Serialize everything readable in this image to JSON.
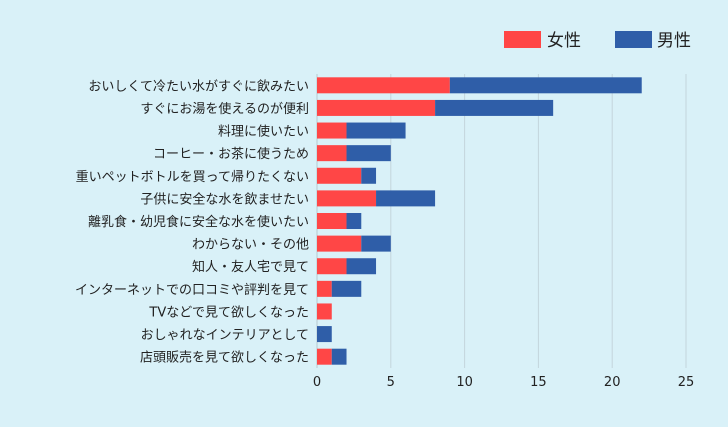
{
  "chart_data": {
    "type": "bar",
    "orientation": "horizontal",
    "stacked": true,
    "categories": [
      "おいしくて冷たい水がすぐに飲みたい",
      "すぐにお湯を使えるのが便利",
      "料理に使いたい",
      "コーヒー・お茶に使うため",
      "重いペットボトルを買って帰りたくない",
      "子供に安全な水を飲ませたい",
      "離乳食・幼児食に安全な水を使いたい",
      "わからない・その他",
      "知人・友人宅で見て",
      "インターネットでの口コミや評判を見て",
      "TVなどで見て欲しくなった",
      "おしゃれなインテリアとして",
      "店頭販売を見て欲しくなった"
    ],
    "series": [
      {
        "name": "女性",
        "color": "#ff4646",
        "values": [
          9,
          8,
          2,
          2,
          3,
          4,
          2,
          3,
          2,
          1,
          1,
          0,
          1
        ]
      },
      {
        "name": "男性",
        "color": "#2f5ea8",
        "values": [
          13,
          8,
          4,
          3,
          1,
          4,
          1,
          2,
          2,
          2,
          0,
          1,
          1
        ]
      }
    ],
    "xlim": [
      0,
      25
    ],
    "xticks": [
      0,
      5,
      10,
      15,
      20,
      25
    ],
    "grid": true,
    "legend_position": "top-right"
  }
}
